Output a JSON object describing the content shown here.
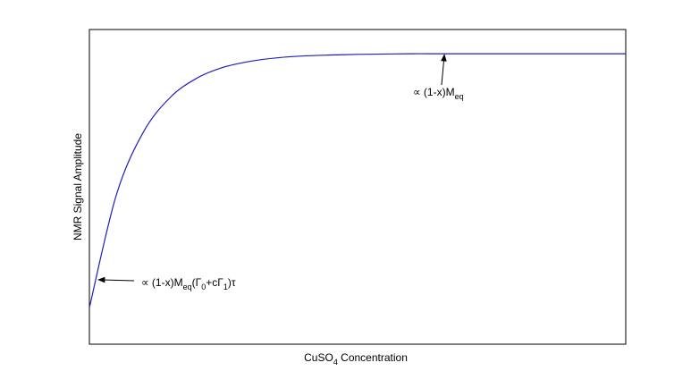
{
  "chart_data": {
    "type": "line",
    "title": "",
    "xlabel": {
      "main": "CuSO",
      "sub": "4",
      "rest": " Concentration"
    },
    "ylabel": "NMR Signal Amplitude",
    "xlim": [
      0,
      1
    ],
    "ylim": [
      0,
      1
    ],
    "grid": false,
    "axis_ticks": false,
    "series": [
      {
        "color": "#1f1fb8",
        "x": [
          0,
          0.05,
          0.1,
          0.15,
          0.2,
          0.25,
          0.3,
          0.35,
          0.4,
          0.45,
          0.5,
          0.55,
          0.6,
          0.65,
          0.7,
          0.75,
          0.8,
          0.85,
          0.9,
          0.95,
          1.0
        ],
        "y": [
          0.116,
          0.473,
          0.672,
          0.783,
          0.845,
          0.88,
          0.899,
          0.91,
          0.916,
          0.919,
          0.921,
          0.922,
          0.923,
          0.923,
          0.923,
          0.923,
          0.923,
          0.923,
          0.923,
          0.923,
          0.923
        ]
      }
    ],
    "annotations": [
      {
        "id": "high-conc",
        "parts": [
          {
            "t": "∝ (1-x)M",
            "sub": false
          },
          {
            "t": "eq",
            "sub": true
          }
        ],
        "points_to": [
          0.662,
          0.923
        ]
      },
      {
        "id": "low-conc",
        "parts": [
          {
            "t": "∝ (1-x)M",
            "sub": false
          },
          {
            "t": "eq",
            "sub": true
          },
          {
            "t": "(Γ",
            "sub": false
          },
          {
            "t": "0",
            "sub": true
          },
          {
            "t": "+cΓ",
            "sub": false
          },
          {
            "t": "1",
            "sub": true
          },
          {
            "t": ")τ",
            "sub": false
          }
        ],
        "points_to": [
          0.015,
          0.205
        ]
      }
    ]
  }
}
